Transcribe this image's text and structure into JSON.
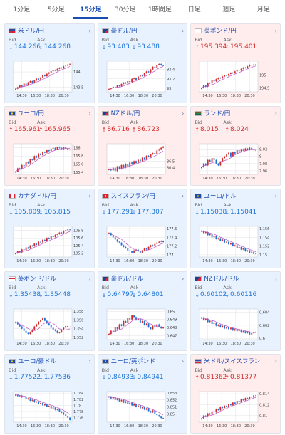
{
  "tabs": [
    {
      "label": "1分足",
      "active": false
    },
    {
      "label": "5分足",
      "active": false
    },
    {
      "label": "15分足",
      "active": true
    },
    {
      "label": "30分足",
      "active": false
    },
    {
      "label": "1時間足",
      "active": false
    },
    {
      "label": "日足",
      "active": false
    },
    {
      "label": "週足",
      "active": false
    },
    {
      "label": "月足",
      "active": false
    }
  ],
  "labels": {
    "bid": "Bid",
    "ask": "Ask"
  },
  "colors": {
    "up": "#d62a2a",
    "down": "#1e73d6",
    "ma": "#c04fc7",
    "grid": "#d8dbe0"
  },
  "cards": [
    {
      "name": "米ドル/円",
      "dir": "down",
      "bid": "144.266",
      "ask": "144.268",
      "flag": "us",
      "yticks": [
        "144",
        "143.5"
      ],
      "xticks": [
        "14:30",
        "16:30",
        "18:30",
        "20:30"
      ],
      "closes": [
        143.45,
        143.5,
        143.56,
        143.52,
        143.62,
        143.58,
        143.66,
        143.7,
        143.64,
        143.72,
        143.78,
        143.75,
        143.82,
        143.9,
        143.86,
        143.94,
        143.98,
        144.02,
        144.06,
        144.04,
        144.1,
        144.14,
        144.12,
        144.18,
        144.2,
        144.24,
        144.26
      ],
      "ylim": [
        143.35,
        144.35
      ]
    },
    {
      "name": "豪ドル/円",
      "dir": "down",
      "bid": "93.483",
      "ask": "93.488",
      "flag": "au",
      "yticks": [
        "93.4",
        "93.2",
        "93"
      ],
      "xticks": [
        "14:30",
        "16:30",
        "18:30",
        "20:30"
      ],
      "closes": [
        92.98,
        93.0,
        93.03,
        93.02,
        93.06,
        93.04,
        93.09,
        93.12,
        93.1,
        93.15,
        93.13,
        93.2,
        93.22,
        93.18,
        93.25,
        93.28,
        93.26,
        93.32,
        93.36,
        93.34,
        93.4,
        93.46,
        93.44,
        93.5,
        93.52,
        93.49,
        93.48
      ],
      "ylim": [
        92.92,
        93.58
      ]
    },
    {
      "name": "英ポンド/円",
      "dir": "up",
      "bid": "195.394",
      "ask": "195.401",
      "flag": "gb",
      "yticks": [
        "195",
        "194.5"
      ],
      "xticks": [
        "14:30",
        "16:30",
        "18:30",
        "20:30"
      ],
      "closes": [
        194.5,
        194.6,
        194.55,
        194.7,
        194.68,
        194.8,
        194.76,
        194.85,
        194.9,
        194.88,
        194.95,
        195.0,
        194.98,
        195.05,
        195.1,
        195.08,
        195.15,
        195.2,
        195.18,
        195.25,
        195.3,
        195.28,
        195.35,
        195.4,
        195.38,
        195.42,
        195.39
      ],
      "ylim": [
        194.35,
        195.55
      ]
    },
    {
      "name": "ユーロ/円",
      "dir": "up",
      "bid": "165.961",
      "ask": "165.965",
      "flag": "eu",
      "yticks": [
        "166",
        "165.8",
        "165.6",
        "165.4"
      ],
      "xticks": [
        "14:30",
        "16:30",
        "18:30",
        "20:30"
      ],
      "closes": [
        165.42,
        165.5,
        165.48,
        165.58,
        165.55,
        165.66,
        165.62,
        165.72,
        165.7,
        165.8,
        165.76,
        165.86,
        165.82,
        165.9,
        165.88,
        165.95,
        165.92,
        165.98,
        166.0,
        165.96,
        166.02,
        166.0,
        165.97,
        166.01,
        165.98,
        165.95,
        165.96
      ],
      "ylim": [
        165.35,
        166.1
      ]
    },
    {
      "name": "NZドル/円",
      "dir": "up",
      "bid": "86.716",
      "ask": "86.723",
      "flag": "nz",
      "yticks": [
        "86.5",
        "86.4"
      ],
      "xticks": [
        "14:30",
        "16:30",
        "18:30",
        "20:30"
      ],
      "closes": [
        86.38,
        86.36,
        86.4,
        86.35,
        86.42,
        86.38,
        86.44,
        86.4,
        86.46,
        86.42,
        86.48,
        86.45,
        86.5,
        86.47,
        86.52,
        86.5,
        86.55,
        86.52,
        86.58,
        86.56,
        86.6,
        86.62,
        86.6,
        86.66,
        86.68,
        86.7,
        86.72
      ],
      "ylim": [
        86.3,
        86.76
      ]
    },
    {
      "name": "ランド/円",
      "dir": "up",
      "bid": "8.015",
      "ask": "8.024",
      "flag": "za",
      "yticks": [
        "8.02",
        "8",
        "7.98",
        "7.96"
      ],
      "xticks": [
        "14:30",
        "16:30",
        "18:30",
        "20:30"
      ],
      "closes": [
        7.97,
        7.98,
        7.975,
        7.99,
        7.985,
        7.995,
        7.99,
        7.98,
        7.975,
        7.985,
        7.995,
        8.0,
        8.005,
        8.01,
        8.0,
        8.012,
        8.008,
        8.018,
        8.014,
        8.02,
        8.016,
        8.022,
        8.018,
        8.024,
        8.02,
        8.018,
        8.016
      ],
      "ylim": [
        7.95,
        8.035
      ]
    },
    {
      "name": "カナダドル/円",
      "dir": "down",
      "bid": "105.809",
      "ask": "105.815",
      "flag": "ca",
      "yticks": [
        "105.8",
        "105.6",
        "105.4",
        "105.2"
      ],
      "xticks": [
        "14:30",
        "16:30",
        "18:30",
        "20:30"
      ],
      "closes": [
        105.2,
        105.25,
        105.22,
        105.3,
        105.28,
        105.35,
        105.32,
        105.4,
        105.38,
        105.45,
        105.42,
        105.5,
        105.48,
        105.55,
        105.52,
        105.6,
        105.58,
        105.64,
        105.62,
        105.68,
        105.7,
        105.74,
        105.72,
        105.78,
        105.8,
        105.82,
        105.81
      ],
      "ylim": [
        105.1,
        105.9
      ]
    },
    {
      "name": "スイスフラン/円",
      "dir": "down",
      "bid": "177.291",
      "ask": "177.307",
      "flag": "ch",
      "yticks": [
        "177.6",
        "177.4",
        "177.2",
        "177"
      ],
      "xticks": [
        "14:30",
        "16:30",
        "18:30",
        "20:30"
      ],
      "closes": [
        177.5,
        177.45,
        177.4,
        177.35,
        177.3,
        177.28,
        177.22,
        177.18,
        177.15,
        177.1,
        177.08,
        177.05,
        177.1,
        177.12,
        177.08,
        177.05,
        177.1,
        177.15,
        177.12,
        177.18,
        177.22,
        177.2,
        177.25,
        177.28,
        177.3,
        177.32,
        177.29
      ],
      "ylim": [
        176.95,
        177.65
      ]
    },
    {
      "name": "ユーロ/ドル",
      "dir": "down",
      "bid": "1.15038",
      "ask": "1.15041",
      "flag": "eu",
      "yticks": [
        "1.156",
        "1.154",
        "1.152",
        "1.15"
      ],
      "xticks": [
        "14:30",
        "16:30",
        "18:30",
        "20:30"
      ],
      "closes": [
        1.1555,
        1.155,
        1.1552,
        1.1545,
        1.1548,
        1.154,
        1.1543,
        1.1536,
        1.1538,
        1.1532,
        1.1535,
        1.1528,
        1.153,
        1.1524,
        1.1527,
        1.152,
        1.1522,
        1.1516,
        1.1518,
        1.1512,
        1.1515,
        1.1508,
        1.151,
        1.1505,
        1.1507,
        1.1502,
        1.1504
      ],
      "ylim": [
        1.1495,
        1.1565
      ]
    },
    {
      "name": "英ポンド/ドル",
      "dir": "down",
      "bid": "1.35438",
      "ask": "1.35448",
      "flag": "gb",
      "yticks": [
        "1.358",
        "1.356",
        "1.354",
        "1.352"
      ],
      "xticks": [
        "14:30",
        "16:30",
        "18:30",
        "20:30"
      ],
      "closes": [
        1.3555,
        1.355,
        1.3545,
        1.354,
        1.3535,
        1.353,
        1.3528,
        1.3532,
        1.3538,
        1.3545,
        1.355,
        1.3556,
        1.356,
        1.3565,
        1.3558,
        1.3552,
        1.3548,
        1.3542,
        1.3538,
        1.3535,
        1.353,
        1.3532,
        1.3538,
        1.3542,
        1.3546,
        1.3544,
        1.3544
      ],
      "ylim": [
        1.3515,
        1.3585
      ]
    },
    {
      "name": "豪ドル/ドル",
      "dir": "down",
      "bid": "0.64797",
      "ask": "0.64801",
      "flag": "au",
      "yticks": [
        "0.65",
        "0.649",
        "0.648",
        "0.647"
      ],
      "xticks": [
        "14:30",
        "16:30",
        "18:30",
        "20:30"
      ],
      "closes": [
        0.6472,
        0.6476,
        0.6474,
        0.648,
        0.6478,
        0.6484,
        0.6482,
        0.6488,
        0.6486,
        0.6492,
        0.649,
        0.6495,
        0.6493,
        0.6489,
        0.6491,
        0.6486,
        0.6488,
        0.6483,
        0.6485,
        0.648,
        0.6478,
        0.6482,
        0.648,
        0.6484,
        0.6481,
        0.6479,
        0.648
      ],
      "ylim": [
        0.6465,
        0.6503
      ]
    },
    {
      "name": "NZドル/ドル",
      "dir": "down",
      "bid": "0.60102",
      "ask": "0.60116",
      "flag": "nz",
      "yticks": [
        "0.604",
        "0.602",
        "0.6"
      ],
      "xticks": [
        "14:30",
        "16:30",
        "18:30",
        "20:30"
      ],
      "closes": [
        0.6032,
        0.6028,
        0.603,
        0.6025,
        0.6027,
        0.6022,
        0.6024,
        0.6019,
        0.6021,
        0.6017,
        0.6019,
        0.6015,
        0.6017,
        0.6014,
        0.6016,
        0.6012,
        0.6014,
        0.6011,
        0.6013,
        0.6009,
        0.6011,
        0.6008,
        0.601,
        0.6006,
        0.6008,
        0.6009,
        0.601
      ],
      "ylim": [
        0.5998,
        0.6045
      ]
    },
    {
      "name": "ユーロ/豪ドル",
      "dir": "down",
      "bid": "1.77522",
      "ask": "1.77536",
      "flag": "eu",
      "yticks": [
        "1.784",
        "1.782",
        "1.78",
        "1.778",
        "1.776"
      ],
      "xticks": [
        "14:30",
        "16:30",
        "18:30",
        "20:30"
      ],
      "closes": [
        1.7835,
        1.783,
        1.7832,
        1.7826,
        1.7828,
        1.782,
        1.7823,
        1.7815,
        1.7818,
        1.781,
        1.7812,
        1.7805,
        1.7808,
        1.78,
        1.7803,
        1.7796,
        1.7798,
        1.779,
        1.7793,
        1.7785,
        1.7788,
        1.778,
        1.7776,
        1.777,
        1.7765,
        1.776,
        1.7752
      ],
      "ylim": [
        1.7745,
        1.7845
      ]
    },
    {
      "name": "ユーロ/英ポンド",
      "dir": "down",
      "bid": "0.84933",
      "ask": "0.84941",
      "flag": "eu",
      "yticks": [
        "0.853",
        "0.852",
        "0.851",
        "0.85"
      ],
      "xticks": [
        "14:30",
        "16:30",
        "18:30",
        "20:30"
      ],
      "closes": [
        0.8525,
        0.8522,
        0.8524,
        0.852,
        0.8522,
        0.8518,
        0.852,
        0.8516,
        0.8518,
        0.8514,
        0.8516,
        0.8512,
        0.8514,
        0.851,
        0.8512,
        0.8508,
        0.851,
        0.8506,
        0.8508,
        0.8504,
        0.8502,
        0.8505,
        0.85,
        0.8498,
        0.8496,
        0.8494,
        0.8493
      ],
      "ylim": [
        0.8488,
        0.8532
      ]
    },
    {
      "name": "米ドル/スイスフラン",
      "dir": "up",
      "bid": "0.81362",
      "ask": "0.81377",
      "flag": "us",
      "yticks": [
        "0.814",
        "0.812",
        "0.81"
      ],
      "xticks": [
        "14:30",
        "16:30",
        "18:30",
        "20:30"
      ],
      "closes": [
        0.8095,
        0.81,
        0.8098,
        0.8104,
        0.8102,
        0.8108,
        0.8106,
        0.8112,
        0.811,
        0.8116,
        0.8114,
        0.8118,
        0.8116,
        0.8121,
        0.8119,
        0.8124,
        0.8122,
        0.8127,
        0.8125,
        0.813,
        0.8128,
        0.8132,
        0.8131,
        0.8134,
        0.8133,
        0.8137,
        0.8136
      ],
      "ylim": [
        0.8088,
        0.8144
      ]
    }
  ]
}
